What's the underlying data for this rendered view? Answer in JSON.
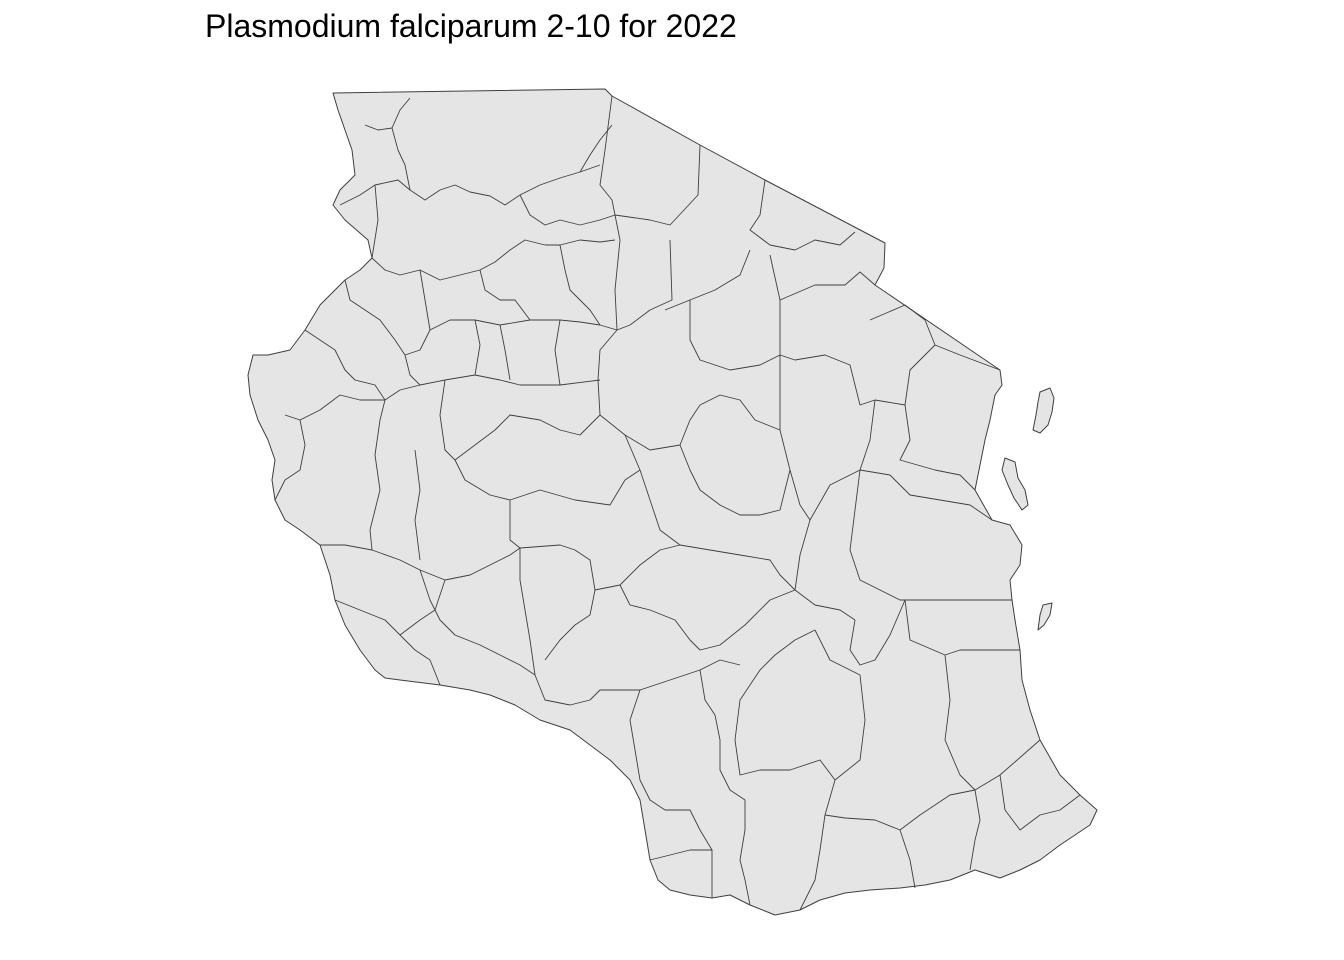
{
  "map": {
    "title": "Plasmodium falciparum 2-10 for 2022",
    "fill_color": "#e5e5e5",
    "border_color": "#3f3f3f",
    "background_color": "#ffffff"
  }
}
